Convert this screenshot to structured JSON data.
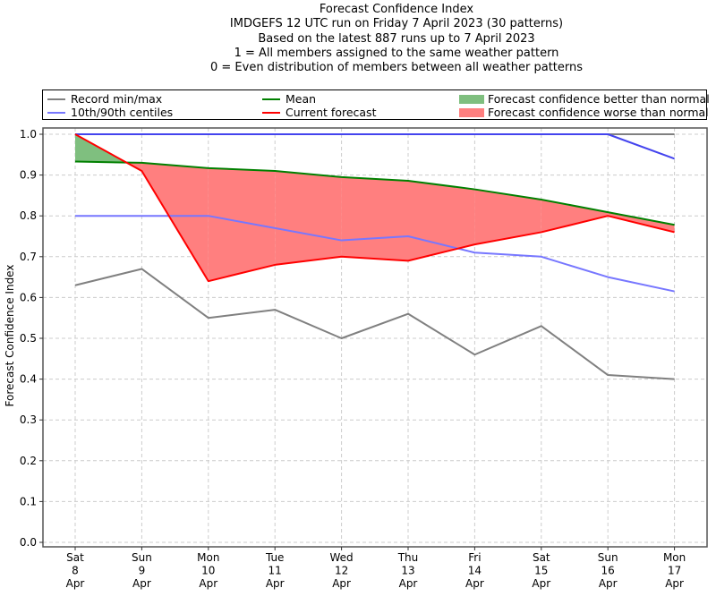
{
  "chart_data": {
    "type": "line",
    "title_lines": [
      "Forecast Confidence Index",
      "IMDGEFS 12 UTC run on Friday 7 April 2023 (30 patterns)",
      "Based on the latest 887 runs up to 7 April 2023",
      "1 = All members assigned to the same weather pattern",
      "0 = Even distribution of members between all weather patterns"
    ],
    "xlabel": "",
    "ylabel": "Forecast Confidence Index",
    "ylim": [
      0,
      1.0
    ],
    "yticks": [
      "0.0",
      "0.1",
      "0.2",
      "0.3",
      "0.4",
      "0.5",
      "0.6",
      "0.7",
      "0.8",
      "0.9",
      "1.0"
    ],
    "grid": true,
    "legend_position": "top (above plot)",
    "categories": [
      {
        "day": "Sat",
        "date": "8",
        "month": "Apr"
      },
      {
        "day": "Sun",
        "date": "9",
        "month": "Apr"
      },
      {
        "day": "Mon",
        "date": "10",
        "month": "Apr"
      },
      {
        "day": "Tue",
        "date": "11",
        "month": "Apr"
      },
      {
        "day": "Wed",
        "date": "12",
        "month": "Apr"
      },
      {
        "day": "Thu",
        "date": "13",
        "month": "Apr"
      },
      {
        "day": "Fri",
        "date": "14",
        "month": "Apr"
      },
      {
        "day": "Sat",
        "date": "15",
        "month": "Apr"
      },
      {
        "day": "Sun",
        "date": "16",
        "month": "Apr"
      },
      {
        "day": "Mon",
        "date": "17",
        "month": "Apr"
      }
    ],
    "series": [
      {
        "name": "Record min",
        "legend": "Record min/max",
        "color": "#808080",
        "values": [
          0.63,
          0.67,
          0.55,
          0.57,
          0.5,
          0.56,
          0.46,
          0.53,
          0.41,
          0.4
        ]
      },
      {
        "name": "Record max",
        "color": "#808080",
        "values": [
          1.0,
          1.0,
          1.0,
          1.0,
          1.0,
          1.0,
          1.0,
          1.0,
          1.0,
          1.0
        ]
      },
      {
        "name": "10th centile",
        "legend": "10th/90th centiles",
        "color": "#7777ff",
        "values": [
          0.8,
          0.8,
          0.8,
          0.77,
          0.74,
          0.75,
          0.71,
          0.7,
          0.65,
          0.615
        ]
      },
      {
        "name": "90th centile",
        "color": "#4444ee",
        "values": [
          1.0,
          1.0,
          1.0,
          1.0,
          1.0,
          1.0,
          1.0,
          1.0,
          1.0,
          0.94
        ]
      },
      {
        "name": "Mean",
        "legend": "Mean",
        "color": "#008000",
        "values": [
          0.933,
          0.93,
          0.917,
          0.91,
          0.895,
          0.886,
          0.865,
          0.84,
          0.809,
          0.778
        ]
      },
      {
        "name": "Current forecast",
        "legend": "Current forecast",
        "color": "#ff0000",
        "values": [
          1.0,
          0.91,
          0.64,
          0.68,
          0.7,
          0.69,
          0.73,
          0.76,
          0.8,
          0.76
        ]
      }
    ],
    "fills": [
      {
        "name": "Forecast confidence better than normal",
        "color": "#7fbf7f"
      },
      {
        "name": "Forecast confidence worse than normal",
        "color": "#ff7f7f"
      }
    ]
  }
}
